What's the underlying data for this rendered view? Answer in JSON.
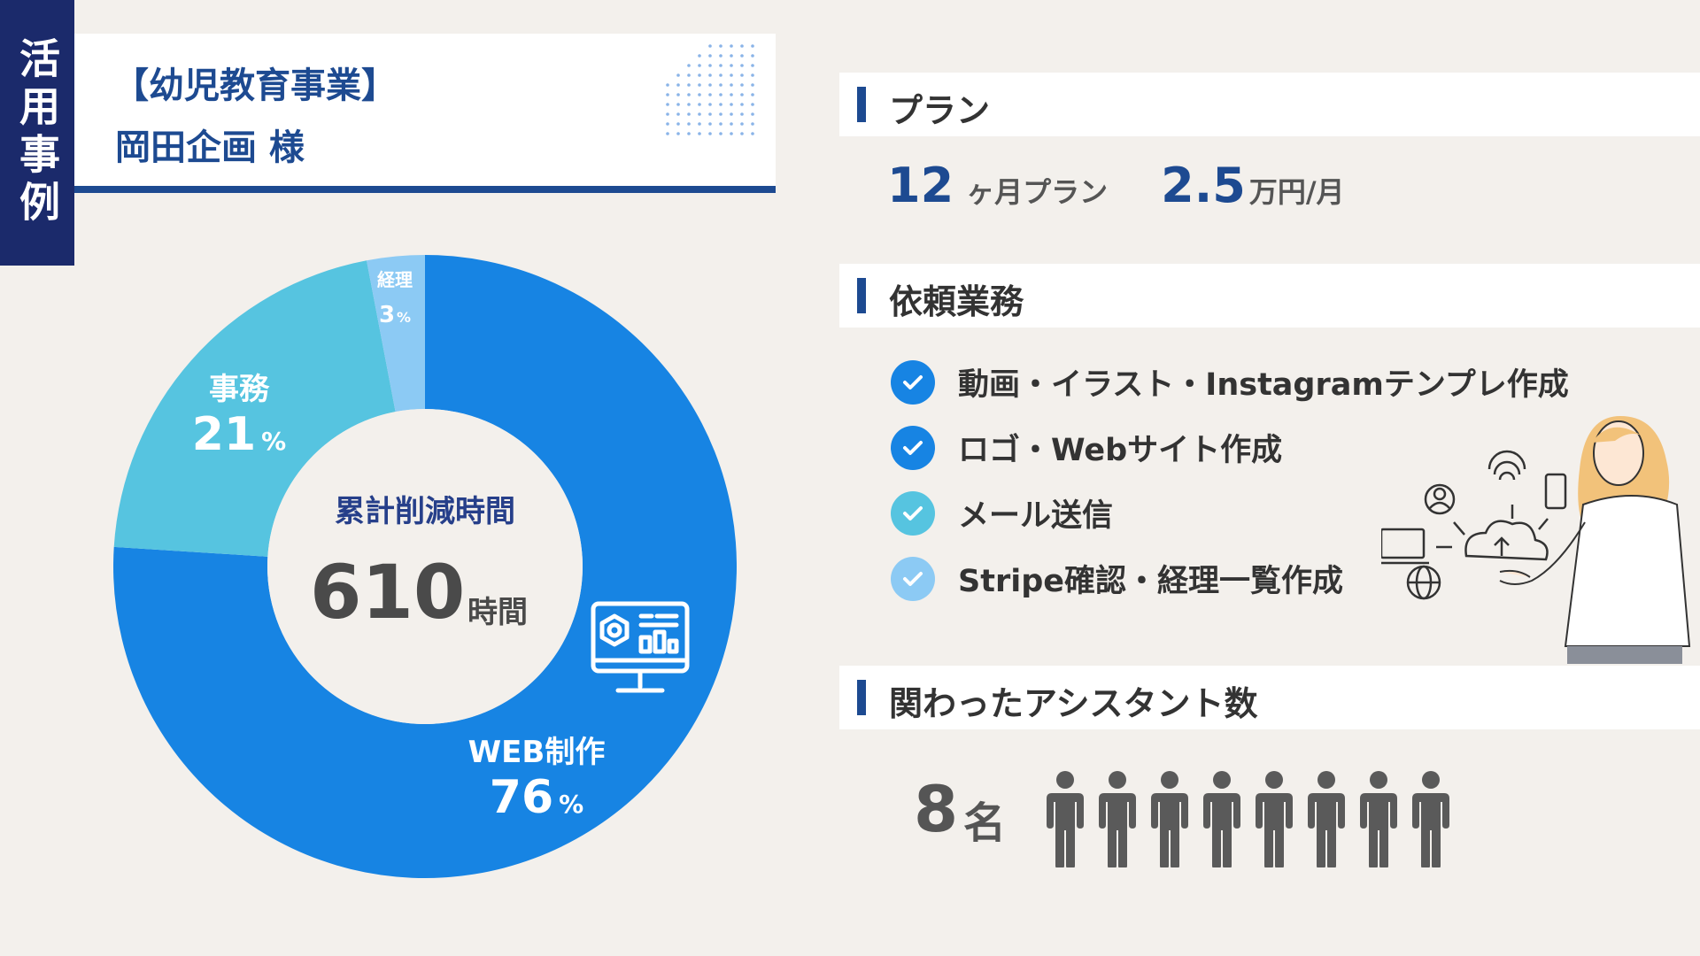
{
  "tag": "活用事例",
  "client": {
    "category": "【幼児教育事業】",
    "name": "岡田企画 様"
  },
  "colors": {
    "navy": "#1b2a6b",
    "brand": "#1d4a91",
    "web": "#1784e3",
    "office": "#56c4e0",
    "accounting": "#8ccaf4",
    "check1": "#1784e3",
    "check2": "#56c4e0",
    "check3": "#8ccaf4"
  },
  "chart_data": {
    "type": "pie",
    "categories": [
      "WEB制作",
      "事務",
      "経理"
    ],
    "values": [
      76,
      21,
      3
    ],
    "unit": "%",
    "center_title": "累計削減時間",
    "center_value": "610",
    "center_unit": "時間",
    "icon": "monitor-dashboard-icon"
  },
  "slice_labels": [
    {
      "name": "WEB制作",
      "value": "76",
      "unit": "%"
    },
    {
      "name": "事務",
      "value": "21",
      "unit": "%"
    },
    {
      "name": "経理",
      "value": "3",
      "unit": "%"
    }
  ],
  "plan": {
    "title": "プラン",
    "months": "12",
    "months_unit": "ヶ月プラン",
    "price": "2.5",
    "price_unit": "万円/月"
  },
  "tasks": {
    "title": "依頼業務",
    "items": [
      "動画・イラスト・Instagramテンプレ作成",
      "ロゴ・Webサイト作成",
      "メール送信",
      "Stripe確認・経理一覧作成"
    ]
  },
  "assistants": {
    "title": "関わったアシスタント数",
    "count": "8",
    "unit": "名",
    "icon": "person-icon",
    "people": 8
  }
}
